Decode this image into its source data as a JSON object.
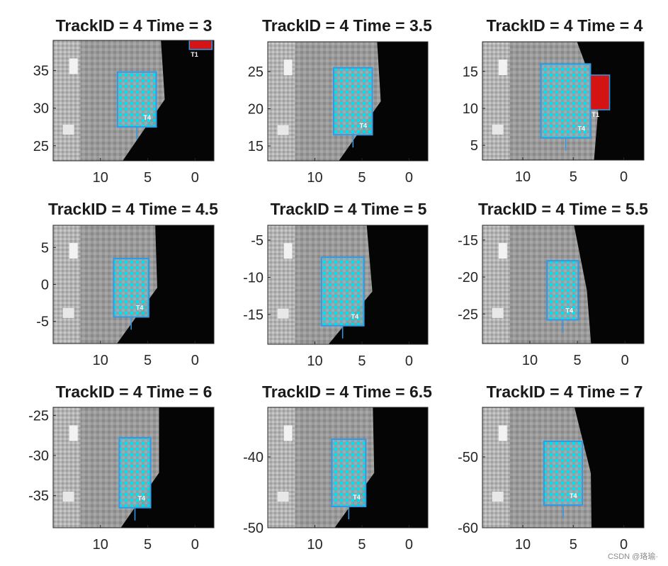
{
  "figure": {
    "watermark": "CSDN @珞瑜·"
  },
  "chart_data": [
    {
      "type": "heatmap",
      "title": "TrackID = 4 Time = 3",
      "x_ticks": [
        10,
        5,
        0
      ],
      "y_ticks": [
        35,
        30,
        25
      ],
      "xlim": [
        15,
        -2
      ],
      "ylim": [
        23,
        39
      ],
      "x_reversed": true,
      "track_label": "T4",
      "track_box": {
        "x": [
          4.1,
          8.2
        ],
        "y": [
          27.5,
          34.8
        ]
      },
      "other_tracks": [
        {
          "label": "T1",
          "x": [
            -1.8,
            0.6
          ],
          "y": [
            37.8,
            39
          ]
        }
      ],
      "grid": false
    },
    {
      "type": "heatmap",
      "title": "TrackID = 4 Time = 3.5",
      "x_ticks": [
        10,
        5,
        0
      ],
      "y_ticks": [
        25,
        20,
        15
      ],
      "xlim": [
        15,
        -2
      ],
      "ylim": [
        13,
        29
      ],
      "x_reversed": true,
      "track_label": "T4",
      "track_box": {
        "x": [
          3.9,
          8
        ],
        "y": [
          16.5,
          25.5
        ]
      },
      "other_tracks": [],
      "grid": false
    },
    {
      "type": "heatmap",
      "title": "TrackID = 4 Time = 4",
      "x_ticks": [
        10,
        5,
        0
      ],
      "y_ticks": [
        15,
        10,
        5
      ],
      "xlim": [
        14,
        -2
      ],
      "ylim": [
        3,
        19
      ],
      "x_reversed": true,
      "track_label": "T4",
      "track_box": {
        "x": [
          3.3,
          8.2
        ],
        "y": [
          6,
          16
        ]
      },
      "other_tracks": [
        {
          "label": "T1",
          "x": [
            1.4,
            3.3
          ],
          "y": [
            9.8,
            14.5
          ]
        }
      ],
      "grid": false
    },
    {
      "type": "heatmap",
      "title": "TrackID = 4 Time = 4.5",
      "x_ticks": [
        10,
        5,
        0
      ],
      "y_ticks": [
        5,
        0,
        -5
      ],
      "xlim": [
        15,
        -2
      ],
      "ylim": [
        -8,
        8
      ],
      "x_reversed": true,
      "track_label": "T4",
      "track_box": {
        "x": [
          4.9,
          8.6
        ],
        "y": [
          -4.4,
          3.5
        ]
      },
      "other_tracks": [],
      "grid": false
    },
    {
      "type": "heatmap",
      "title": "TrackID = 4 Time = 5",
      "x_ticks": [
        10,
        5,
        0
      ],
      "y_ticks": [
        -5,
        -10,
        -15
      ],
      "xlim": [
        15,
        -2
      ],
      "ylim": [
        -19,
        -3
      ],
      "x_reversed": true,
      "track_label": "T4",
      "track_box": {
        "x": [
          4.8,
          9.3
        ],
        "y": [
          -16.5,
          -7.3
        ]
      },
      "other_tracks": [],
      "grid": false
    },
    {
      "type": "heatmap",
      "title": "TrackID = 4 Time = 5.5",
      "x_ticks": [
        10,
        5,
        0
      ],
      "y_ticks": [
        -15,
        -20,
        -25
      ],
      "xlim": [
        15,
        -2
      ],
      "ylim": [
        -29,
        -13
      ],
      "x_reversed": true,
      "track_label": "T4",
      "track_box": {
        "x": [
          4.9,
          8.2
        ],
        "y": [
          -25.8,
          -17.8
        ]
      },
      "other_tracks": [],
      "grid": false
    },
    {
      "type": "heatmap",
      "title": "TrackID = 4 Time = 6",
      "x_ticks": [
        10,
        5,
        0
      ],
      "y_ticks": [
        -25,
        -30,
        -35
      ],
      "xlim": [
        15,
        -2
      ],
      "ylim": [
        -39,
        -24
      ],
      "x_reversed": true,
      "track_label": "T4",
      "track_box": {
        "x": [
          4.7,
          8
        ],
        "y": [
          -36.5,
          -27.8
        ]
      },
      "other_tracks": [],
      "grid": false
    },
    {
      "type": "heatmap",
      "title": "TrackID = 4 Time = 6.5",
      "x_ticks": [
        10,
        5,
        0
      ],
      "y_ticks": [
        -40,
        -50
      ],
      "xlim": [
        15,
        -2
      ],
      "ylim": [
        -50,
        -33
      ],
      "x_reversed": true,
      "track_label": "T4",
      "track_box": {
        "x": [
          4.6,
          8.2
        ],
        "y": [
          -47,
          -37.5
        ]
      },
      "other_tracks": [],
      "grid": false
    },
    {
      "type": "heatmap",
      "title": "TrackID = 4 Time = 7",
      "x_ticks": [
        10,
        5,
        0
      ],
      "y_ticks": [
        -50,
        -60
      ],
      "xlim": [
        14,
        -2
      ],
      "ylim": [
        -60,
        -43
      ],
      "x_reversed": true,
      "track_label": "T4",
      "track_box": {
        "x": [
          4.1,
          7.9
        ],
        "y": [
          -56.8,
          -47.8
        ]
      },
      "other_tracks": [],
      "grid": false
    }
  ]
}
